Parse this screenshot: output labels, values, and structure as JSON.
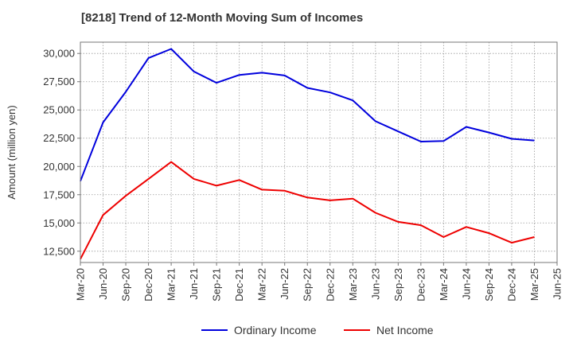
{
  "chart_data": {
    "type": "line",
    "title": "[8218]  Trend of 12-Month Moving Sum of Incomes",
    "xlabel": "",
    "ylabel": "Amount (million yen)",
    "ylim": [
      11500,
      31000
    ],
    "yticks": [
      12500,
      15000,
      17500,
      20000,
      22500,
      25000,
      27500,
      30000
    ],
    "ytick_labels": [
      "12,500",
      "15,000",
      "17,500",
      "20,000",
      "22,500",
      "25,000",
      "27,500",
      "30,000"
    ],
    "categories": [
      "Mar-20",
      "Jun-20",
      "Sep-20",
      "Dec-20",
      "Mar-21",
      "Jun-21",
      "Sep-21",
      "Dec-21",
      "Mar-22",
      "Jun-22",
      "Sep-22",
      "Dec-22",
      "Mar-23",
      "Jun-23",
      "Sep-23",
      "Dec-23",
      "Mar-24",
      "Jun-24",
      "Sep-24",
      "Dec-24",
      "Mar-25",
      "Jun-25"
    ],
    "grid": true,
    "legend_position": "bottom",
    "series": [
      {
        "name": "Ordinary Income",
        "color": "#0000dd",
        "values": [
          18700,
          23900,
          26600,
          29600,
          30400,
          28400,
          27400,
          28100,
          28300,
          28050,
          26950,
          26550,
          25850,
          24000,
          23100,
          22200,
          22250,
          23500,
          23000,
          22450,
          22300,
          null
        ]
      },
      {
        "name": "Net Income",
        "color": "#ee0000",
        "values": [
          11800,
          15700,
          17400,
          18900,
          20400,
          18900,
          18300,
          18800,
          17950,
          17850,
          17250,
          17000,
          17150,
          15900,
          15100,
          14800,
          13750,
          14650,
          14100,
          13250,
          13750,
          null
        ]
      }
    ]
  }
}
